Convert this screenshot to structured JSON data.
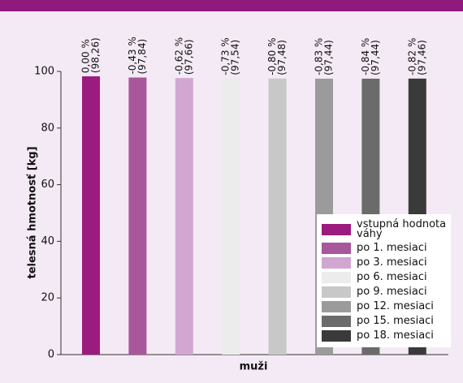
{
  "chart_data": {
    "type": "bar",
    "categories": [
      "muži"
    ],
    "xlabel": "muži",
    "ylabel": "telesná hmotnosť [kg]",
    "ylim": [
      0,
      100
    ],
    "yticks": [
      0,
      20,
      40,
      60,
      80,
      100
    ],
    "series": [
      {
        "name": "vstupná hodnota váhy",
        "color": "#9b1b7e",
        "values": [
          98.26
        ],
        "value_labels": [
          "(98,26)"
        ],
        "change_labels": [
          "0,00 %"
        ]
      },
      {
        "name": "po 1. mesiaci",
        "color": "#a8579a",
        "values": [
          97.84
        ],
        "value_labels": [
          "(97,84)"
        ],
        "change_labels": [
          "-0,43 %"
        ]
      },
      {
        "name": "po 3. mesiaci",
        "color": "#d1a7d2",
        "values": [
          97.66
        ],
        "value_labels": [
          "(97,66)"
        ],
        "change_labels": [
          "-0,62 %"
        ]
      },
      {
        "name": "po 6. mesiaci",
        "color": "#ececec",
        "values": [
          97.54
        ],
        "value_labels": [
          "(97,54)"
        ],
        "change_labels": [
          "-0,73 %"
        ]
      },
      {
        "name": "po 9. mesiaci",
        "color": "#c8c8c8",
        "values": [
          97.48
        ],
        "value_labels": [
          "(97,48)"
        ],
        "change_labels": [
          "-0,80 %"
        ]
      },
      {
        "name": "po 12. mesiaci",
        "color": "#9b9b9b",
        "values": [
          97.44
        ],
        "value_labels": [
          "(97,44)"
        ],
        "change_labels": [
          "-0,83 %"
        ]
      },
      {
        "name": "po 15. mesiaci",
        "color": "#6b6b6b",
        "values": [
          97.44
        ],
        "value_labels": [
          "(97,44)"
        ],
        "change_labels": [
          "-0,84 %"
        ]
      },
      {
        "name": "po 18. mesiaci",
        "color": "#3a3a3a",
        "values": [
          97.46
        ],
        "value_labels": [
          "(97,46)"
        ],
        "change_labels": [
          "-0,82 %"
        ]
      }
    ]
  }
}
